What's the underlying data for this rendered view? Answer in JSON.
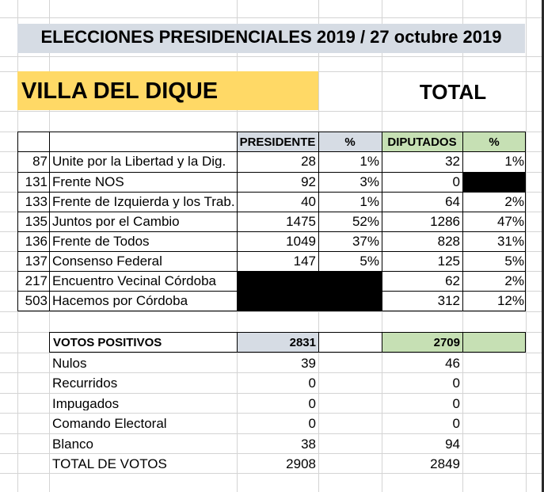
{
  "title": "ELECCIONES PRESIDENCIALES 2019 / 27 octubre 2019",
  "locality": "VILLA DEL DIQUE",
  "total_label": "TOTAL",
  "headers": {
    "presidente": "PRESIDENTE",
    "pct": "%",
    "diputados": "DIPUTADOS"
  },
  "parties": [
    {
      "num": "87",
      "name": "Unite por la Libertad y la Dig.",
      "presidente": "28",
      "pres_pct": "1%",
      "diputados": "32",
      "dip_pct": "1%"
    },
    {
      "num": "131",
      "name": "Frente NOS",
      "presidente": "92",
      "pres_pct": "3%",
      "diputados": "0",
      "dip_pct": ""
    },
    {
      "num": "133",
      "name": "Frente de Izquierda y los Trab.",
      "presidente": "40",
      "pres_pct": "1%",
      "diputados": "64",
      "dip_pct": "2%"
    },
    {
      "num": "135",
      "name": "Juntos por el Cambio",
      "presidente": "1475",
      "pres_pct": "52%",
      "diputados": "1286",
      "dip_pct": "47%"
    },
    {
      "num": "136",
      "name": "Frente de Todos",
      "presidente": "1049",
      "pres_pct": "37%",
      "diputados": "828",
      "dip_pct": "31%"
    },
    {
      "num": "137",
      "name": "Consenso Federal",
      "presidente": "147",
      "pres_pct": "5%",
      "diputados": "125",
      "dip_pct": "5%"
    },
    {
      "num": "217",
      "name": "Encuentro Vecinal Córdoba",
      "presidente": "",
      "pres_pct": "",
      "diputados": "62",
      "dip_pct": "2%"
    },
    {
      "num": "503",
      "name": "Hacemos por Córdoba",
      "presidente": "",
      "pres_pct": "",
      "diputados": "312",
      "dip_pct": "12%"
    }
  ],
  "positive": {
    "label": "VOTOS POSITIVOS",
    "presidente": "2831",
    "diputados": "2709"
  },
  "summary": [
    {
      "label": "Nulos",
      "presidente": "39",
      "diputados": "46"
    },
    {
      "label": "Recurridos",
      "presidente": "0",
      "diputados": "0"
    },
    {
      "label": "Impugados",
      "presidente": "0",
      "diputados": "0"
    },
    {
      "label": "Comando Electoral",
      "presidente": "0",
      "diputados": "0"
    },
    {
      "label": "Blanco",
      "presidente": "38",
      "diputados": "94"
    },
    {
      "label": "TOTAL DE VOTOS",
      "presidente": "2908",
      "diputados": "2849"
    }
  ]
}
